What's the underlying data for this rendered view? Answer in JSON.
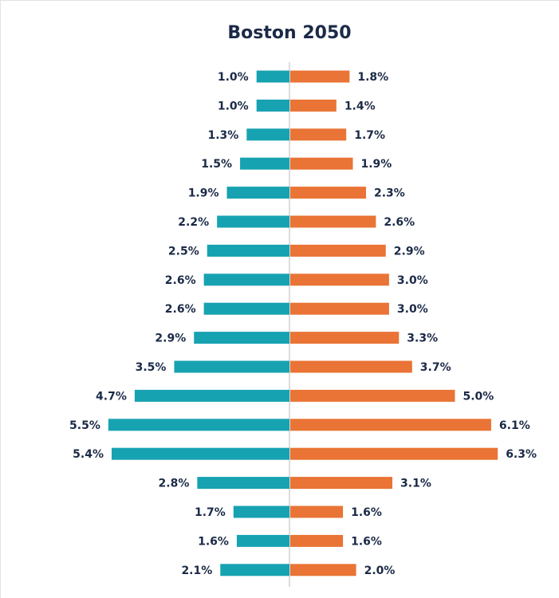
{
  "chart_data": {
    "type": "pyramid",
    "title": "Boston 2050",
    "series": [
      {
        "color": "#17a2b1",
        "side": "left",
        "values": [
          1.0,
          1.0,
          1.3,
          1.5,
          1.9,
          2.2,
          2.5,
          2.6,
          2.6,
          2.9,
          3.5,
          4.7,
          5.5,
          5.4,
          2.8,
          1.7,
          1.6,
          2.1
        ],
        "value_labels": [
          "1.0%",
          "1.0%",
          "1.3%",
          "1.5%",
          "1.9%",
          "2.2%",
          "2.5%",
          "2.6%",
          "2.6%",
          "2.9%",
          "3.5%",
          "4.7%",
          "5.5%",
          "5.4%",
          "2.8%",
          "1.7%",
          "1.6%",
          "2.1%"
        ]
      },
      {
        "color": "#e97435",
        "side": "right",
        "values": [
          1.8,
          1.4,
          1.7,
          1.9,
          2.3,
          2.6,
          2.9,
          3.0,
          3.0,
          3.3,
          3.7,
          5.0,
          6.1,
          6.3,
          3.1,
          1.6,
          1.6,
          2.0
        ],
        "value_labels": [
          "1.8%",
          "1.4%",
          "1.7%",
          "1.9%",
          "2.3%",
          "2.6%",
          "2.9%",
          "3.0%",
          "3.0%",
          "3.3%",
          "3.7%",
          "5.0%",
          "6.1%",
          "6.3%",
          "3.1%",
          "1.6%",
          "1.6%",
          "2.0%"
        ]
      }
    ]
  }
}
